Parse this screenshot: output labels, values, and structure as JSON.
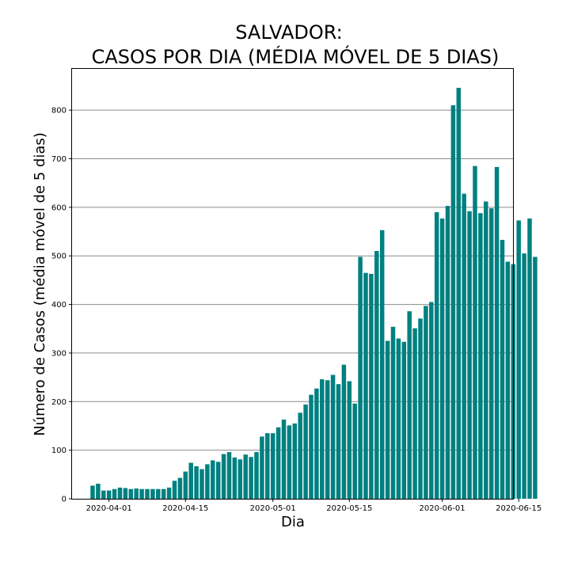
{
  "chart_data": {
    "type": "bar",
    "title_line1": "SALVADOR:",
    "title_line2": "CASOS POR DIA (MÉDIA MÓVEL DE 5 DIAS)",
    "xlabel": "Dia",
    "ylabel": "Número de Casos (média móvel de 5 dias)",
    "x_start_date": "2020-03-29",
    "x_ticks": [
      "2020-04-01",
      "2020-04-15",
      "2020-05-01",
      "2020-05-15",
      "2020-06-01",
      "2020-06-15"
    ],
    "y_ticks": [
      "0",
      "100",
      "200",
      "300",
      "400",
      "500",
      "600",
      "700",
      "800"
    ],
    "ylim": [
      0,
      885
    ],
    "grid": "horizontal",
    "bar_color": "#008080",
    "values": [
      27,
      31,
      17,
      17,
      20,
      23,
      22,
      20,
      21,
      20,
      20,
      20,
      20,
      20,
      23,
      37,
      43,
      56,
      74,
      67,
      61,
      71,
      79,
      76,
      92,
      96,
      85,
      81,
      91,
      86,
      96,
      128,
      135,
      135,
      147,
      163,
      151,
      155,
      177,
      194,
      214,
      227,
      246,
      244,
      255,
      236,
      276,
      242,
      196,
      498,
      465,
      463,
      510,
      553,
      325,
      354,
      330,
      323,
      386,
      351,
      371,
      397,
      405,
      590,
      577,
      603,
      810,
      846,
      628,
      592,
      685,
      588,
      612,
      598,
      683,
      533,
      488,
      483,
      573,
      505,
      577,
      498
    ]
  }
}
